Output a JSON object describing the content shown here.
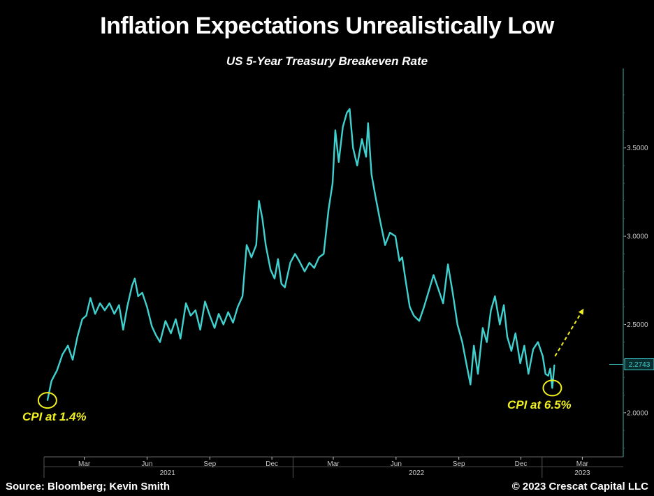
{
  "header": {
    "title": "Inflation Expectations Unrealistically Low",
    "subtitle": "US 5-Year Treasury Breakeven Rate"
  },
  "footer": {
    "source": "Source: Bloomberg; Kevin Smith",
    "copyright": "© 2023 Crescat Capital LLC"
  },
  "colors": {
    "background": "#000000",
    "line": "#3fd1cf",
    "annotation": "#f0f01e",
    "axis": "#c8c8c8"
  },
  "chart_data": {
    "type": "line",
    "title": "Inflation Expectations Unrealistically Low",
    "subtitle": "US 5-Year Treasury Breakeven Rate",
    "xlabel": "",
    "ylabel": "",
    "ylim": [
      1.75,
      3.95
    ],
    "yticks": [
      2.0,
      2.5,
      3.0,
      3.5
    ],
    "ytick_labels": [
      "2.0000",
      "2.5000",
      "3.0000",
      "3.5000"
    ],
    "y_axis_side": "right",
    "grid": false,
    "last_value_label": "2.2743",
    "last_value": 2.2743,
    "x_months": [
      {
        "date": "2021-03-01",
        "label": "Mar"
      },
      {
        "date": "2021-06-01",
        "label": "Jun"
      },
      {
        "date": "2021-09-01",
        "label": "Sep"
      },
      {
        "date": "2021-12-01",
        "label": "Dec"
      },
      {
        "date": "2022-03-01",
        "label": "Mar"
      },
      {
        "date": "2022-06-01",
        "label": "Jun"
      },
      {
        "date": "2022-09-01",
        "label": "Sep"
      },
      {
        "date": "2022-12-01",
        "label": "Dec"
      },
      {
        "date": "2023-03-01",
        "label": "Mar"
      }
    ],
    "x_years": [
      {
        "date": "2021-07-01",
        "label": "2021"
      },
      {
        "date": "2022-07-01",
        "label": "2022"
      },
      {
        "date": "2023-03-01",
        "label": "2023"
      }
    ],
    "x_range": [
      "2021-01-01",
      "2023-04-30"
    ],
    "series": [
      {
        "name": "",
        "points": [
          [
            "2021-01-06",
            2.07
          ],
          [
            "2021-01-12",
            2.18
          ],
          [
            "2021-01-20",
            2.24
          ],
          [
            "2021-01-28",
            2.33
          ],
          [
            "2021-02-05",
            2.38
          ],
          [
            "2021-02-12",
            2.3
          ],
          [
            "2021-02-19",
            2.43
          ],
          [
            "2021-02-26",
            2.53
          ],
          [
            "2021-03-04",
            2.55
          ],
          [
            "2021-03-10",
            2.65
          ],
          [
            "2021-03-17",
            2.56
          ],
          [
            "2021-03-24",
            2.62
          ],
          [
            "2021-03-31",
            2.58
          ],
          [
            "2021-04-07",
            2.62
          ],
          [
            "2021-04-14",
            2.56
          ],
          [
            "2021-04-21",
            2.61
          ],
          [
            "2021-04-27",
            2.47
          ],
          [
            "2021-05-03",
            2.6
          ],
          [
            "2021-05-10",
            2.72
          ],
          [
            "2021-05-14",
            2.76
          ],
          [
            "2021-05-19",
            2.66
          ],
          [
            "2021-05-25",
            2.68
          ],
          [
            "2021-06-01",
            2.6
          ],
          [
            "2021-06-08",
            2.49
          ],
          [
            "2021-06-14",
            2.44
          ],
          [
            "2021-06-20",
            2.4
          ],
          [
            "2021-06-28",
            2.52
          ],
          [
            "2021-07-06",
            2.45
          ],
          [
            "2021-07-13",
            2.53
          ],
          [
            "2021-07-20",
            2.42
          ],
          [
            "2021-07-28",
            2.62
          ],
          [
            "2021-08-04",
            2.55
          ],
          [
            "2021-08-11",
            2.58
          ],
          [
            "2021-08-18",
            2.47
          ],
          [
            "2021-08-25",
            2.63
          ],
          [
            "2021-09-01",
            2.55
          ],
          [
            "2021-09-08",
            2.48
          ],
          [
            "2021-09-14",
            2.56
          ],
          [
            "2021-09-21",
            2.5
          ],
          [
            "2021-09-28",
            2.57
          ],
          [
            "2021-10-05",
            2.51
          ],
          [
            "2021-10-12",
            2.6
          ],
          [
            "2021-10-19",
            2.66
          ],
          [
            "2021-10-25",
            2.95
          ],
          [
            "2021-11-01",
            2.88
          ],
          [
            "2021-11-08",
            2.95
          ],
          [
            "2021-11-12",
            3.2
          ],
          [
            "2021-11-17",
            3.1
          ],
          [
            "2021-11-22",
            2.95
          ],
          [
            "2021-11-29",
            2.81
          ],
          [
            "2021-12-05",
            2.76
          ],
          [
            "2021-12-10",
            2.87
          ],
          [
            "2021-12-15",
            2.73
          ],
          [
            "2021-12-20",
            2.71
          ],
          [
            "2021-12-28",
            2.85
          ],
          [
            "2022-01-04",
            2.9
          ],
          [
            "2022-01-10",
            2.86
          ],
          [
            "2022-01-18",
            2.8
          ],
          [
            "2022-01-25",
            2.85
          ],
          [
            "2022-02-01",
            2.82
          ],
          [
            "2022-02-08",
            2.88
          ],
          [
            "2022-02-15",
            2.9
          ],
          [
            "2022-02-22",
            3.15
          ],
          [
            "2022-02-28",
            3.3
          ],
          [
            "2022-03-04",
            3.6
          ],
          [
            "2022-03-09",
            3.42
          ],
          [
            "2022-03-15",
            3.62
          ],
          [
            "2022-03-21",
            3.7
          ],
          [
            "2022-03-25",
            3.72
          ],
          [
            "2022-03-30",
            3.5
          ],
          [
            "2022-04-05",
            3.4
          ],
          [
            "2022-04-12",
            3.55
          ],
          [
            "2022-04-18",
            3.45
          ],
          [
            "2022-04-21",
            3.64
          ],
          [
            "2022-04-26",
            3.35
          ],
          [
            "2022-05-02",
            3.22
          ],
          [
            "2022-05-09",
            3.08
          ],
          [
            "2022-05-16",
            2.95
          ],
          [
            "2022-05-23",
            3.02
          ],
          [
            "2022-05-31",
            3.0
          ],
          [
            "2022-06-06",
            2.86
          ],
          [
            "2022-06-10",
            2.88
          ],
          [
            "2022-06-15",
            2.75
          ],
          [
            "2022-06-21",
            2.6
          ],
          [
            "2022-06-27",
            2.55
          ],
          [
            "2022-07-05",
            2.52
          ],
          [
            "2022-07-12",
            2.6
          ],
          [
            "2022-07-19",
            2.69
          ],
          [
            "2022-07-26",
            2.78
          ],
          [
            "2022-08-02",
            2.7
          ],
          [
            "2022-08-09",
            2.62
          ],
          [
            "2022-08-16",
            2.84
          ],
          [
            "2022-08-23",
            2.68
          ],
          [
            "2022-08-30",
            2.5
          ],
          [
            "2022-09-06",
            2.4
          ],
          [
            "2022-09-12",
            2.28
          ],
          [
            "2022-09-18",
            2.16
          ],
          [
            "2022-09-23",
            2.38
          ],
          [
            "2022-09-29",
            2.22
          ],
          [
            "2022-10-06",
            2.48
          ],
          [
            "2022-10-12",
            2.4
          ],
          [
            "2022-10-18",
            2.58
          ],
          [
            "2022-10-24",
            2.66
          ],
          [
            "2022-10-31",
            2.5
          ],
          [
            "2022-11-06",
            2.61
          ],
          [
            "2022-11-11",
            2.43
          ],
          [
            "2022-11-17",
            2.35
          ],
          [
            "2022-11-23",
            2.45
          ],
          [
            "2022-11-30",
            2.28
          ],
          [
            "2022-12-06",
            2.38
          ],
          [
            "2022-12-12",
            2.22
          ],
          [
            "2022-12-19",
            2.36
          ],
          [
            "2022-12-26",
            2.4
          ],
          [
            "2023-01-02",
            2.32
          ],
          [
            "2023-01-06",
            2.22
          ],
          [
            "2023-01-10",
            2.21
          ],
          [
            "2023-01-13",
            2.25
          ],
          [
            "2023-01-16",
            2.14
          ],
          [
            "2023-01-19",
            2.27
          ]
        ]
      }
    ],
    "annotations": [
      {
        "text": "CPI at 1.4%",
        "date": "2021-01-06",
        "value": 2.07
      },
      {
        "text": "CPI at 6.5%",
        "date": "2023-01-16",
        "value": 2.14
      }
    ],
    "projection_arrow": {
      "from": [
        "2023-01-20",
        2.32
      ],
      "to": [
        "2023-03-03",
        2.59
      ]
    }
  }
}
